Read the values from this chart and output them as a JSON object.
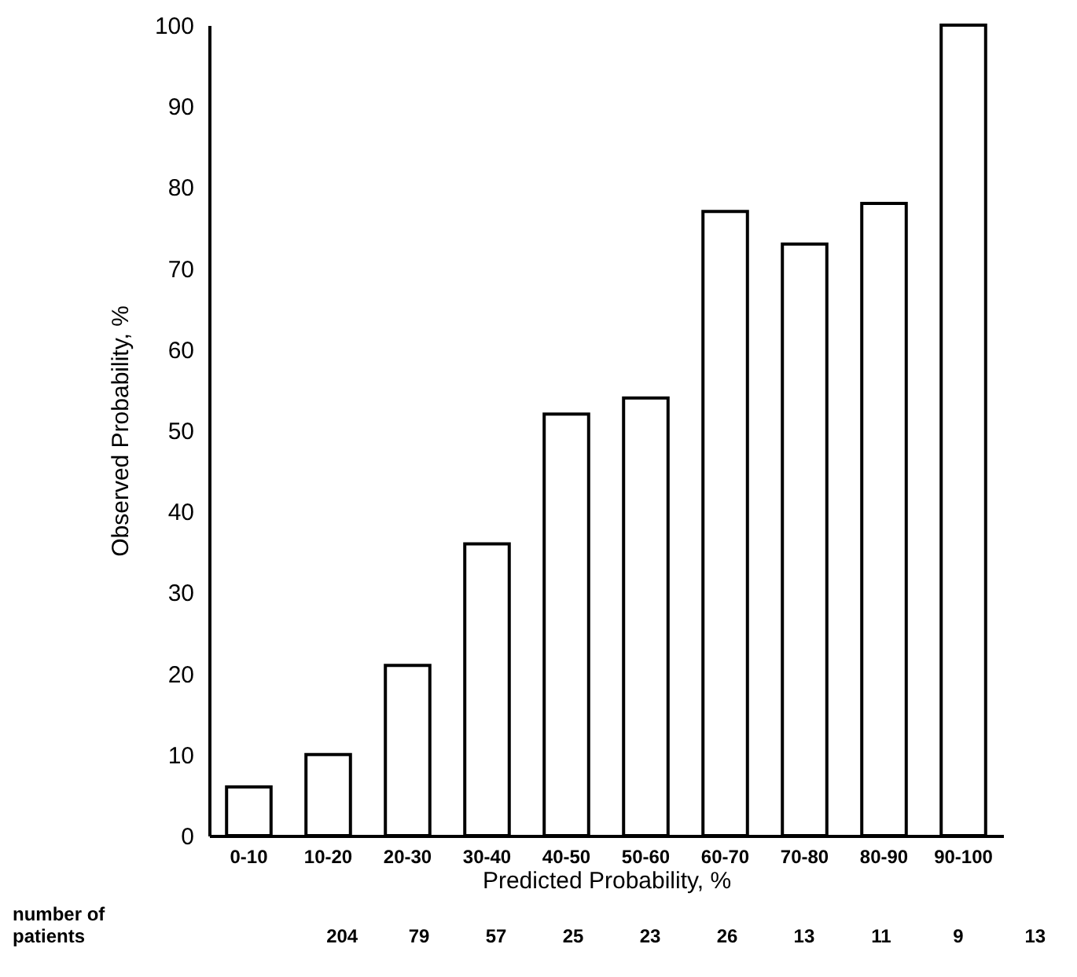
{
  "chart_data": {
    "type": "bar",
    "xlabel": "Predicted Probability, %",
    "ylabel": "Observed Probability, %",
    "categories": [
      "0-10",
      "10-20",
      "20-30",
      "30-40",
      "40-50",
      "50-60",
      "60-70",
      "70-80",
      "80-90",
      "90-100"
    ],
    "values": [
      6,
      10,
      21,
      36,
      52,
      54,
      77,
      73,
      78,
      100
    ],
    "color": "#ffffff",
    "ylim": [
      0,
      100
    ],
    "yticks": [
      0,
      10,
      20,
      30,
      40,
      50,
      60,
      70,
      80,
      90,
      100
    ],
    "grid": false,
    "annotations": [
      "number of\npatients",
      "204",
      "79",
      "57",
      "25",
      "23",
      "26",
      "13",
      "11",
      "9",
      "13"
    ]
  }
}
